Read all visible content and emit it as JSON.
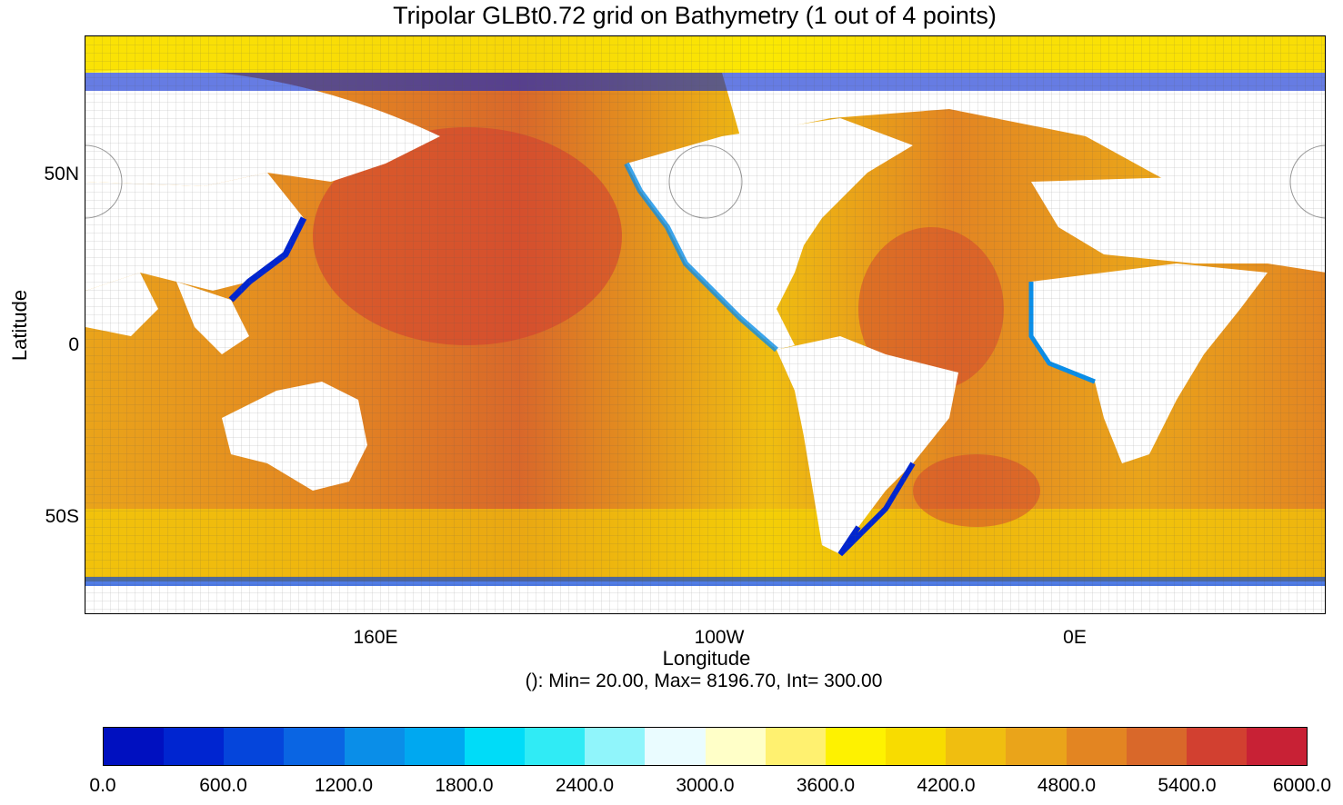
{
  "title": "Tripolar GLBt0.72 grid on Bathymetry (1 out of 4 points)",
  "axes": {
    "ylabel": "Latitude",
    "xlabel": "Longitude",
    "yticks": [
      "50N",
      "0",
      "50S"
    ],
    "xticks": [
      "160E",
      "100W",
      "0E"
    ]
  },
  "stats": "(): Min= 20.00, Max= 8196.70, Int= 300.00",
  "colorbar": {
    "colors": [
      "#0010c0",
      "#0025d0",
      "#0545db",
      "#0a65e3",
      "#0a8ee8",
      "#00a8f0",
      "#00dcf8",
      "#30ebf5",
      "#90f5fb",
      "#eafcff",
      "#ffffc8",
      "#fff170",
      "#fef200",
      "#f8dc00",
      "#f0be10",
      "#eaa41a",
      "#e38522",
      "#d9682a",
      "#d24030",
      "#c82135"
    ],
    "labels": [
      "0.0",
      "600.0",
      "1200.0",
      "1800.0",
      "2400.0",
      "3000.0",
      "3600.0",
      "4200.0",
      "4800.0",
      "5400.0",
      "6000.0"
    ]
  },
  "chart_data": {
    "type": "heatmap",
    "title": "Tripolar GLBt0.72 grid on Bathymetry (1 out of 4 points)",
    "xlabel": "Longitude",
    "ylabel": "Latitude",
    "x_ticks": [
      "160E",
      "100W",
      "0E"
    ],
    "y_ticks": [
      "50N",
      "0",
      "50S"
    ],
    "variable": "Bathymetry",
    "min": 20.0,
    "max": 8196.7,
    "contour_interval": 300.0,
    "colorbar_range": [
      0.0,
      6000.0
    ],
    "colorbar_ticks": [
      0.0,
      600.0,
      1200.0,
      1800.0,
      2400.0,
      3000.0,
      3600.0,
      4200.0,
      4800.0,
      5400.0,
      6000.0
    ],
    "grid": true
  }
}
